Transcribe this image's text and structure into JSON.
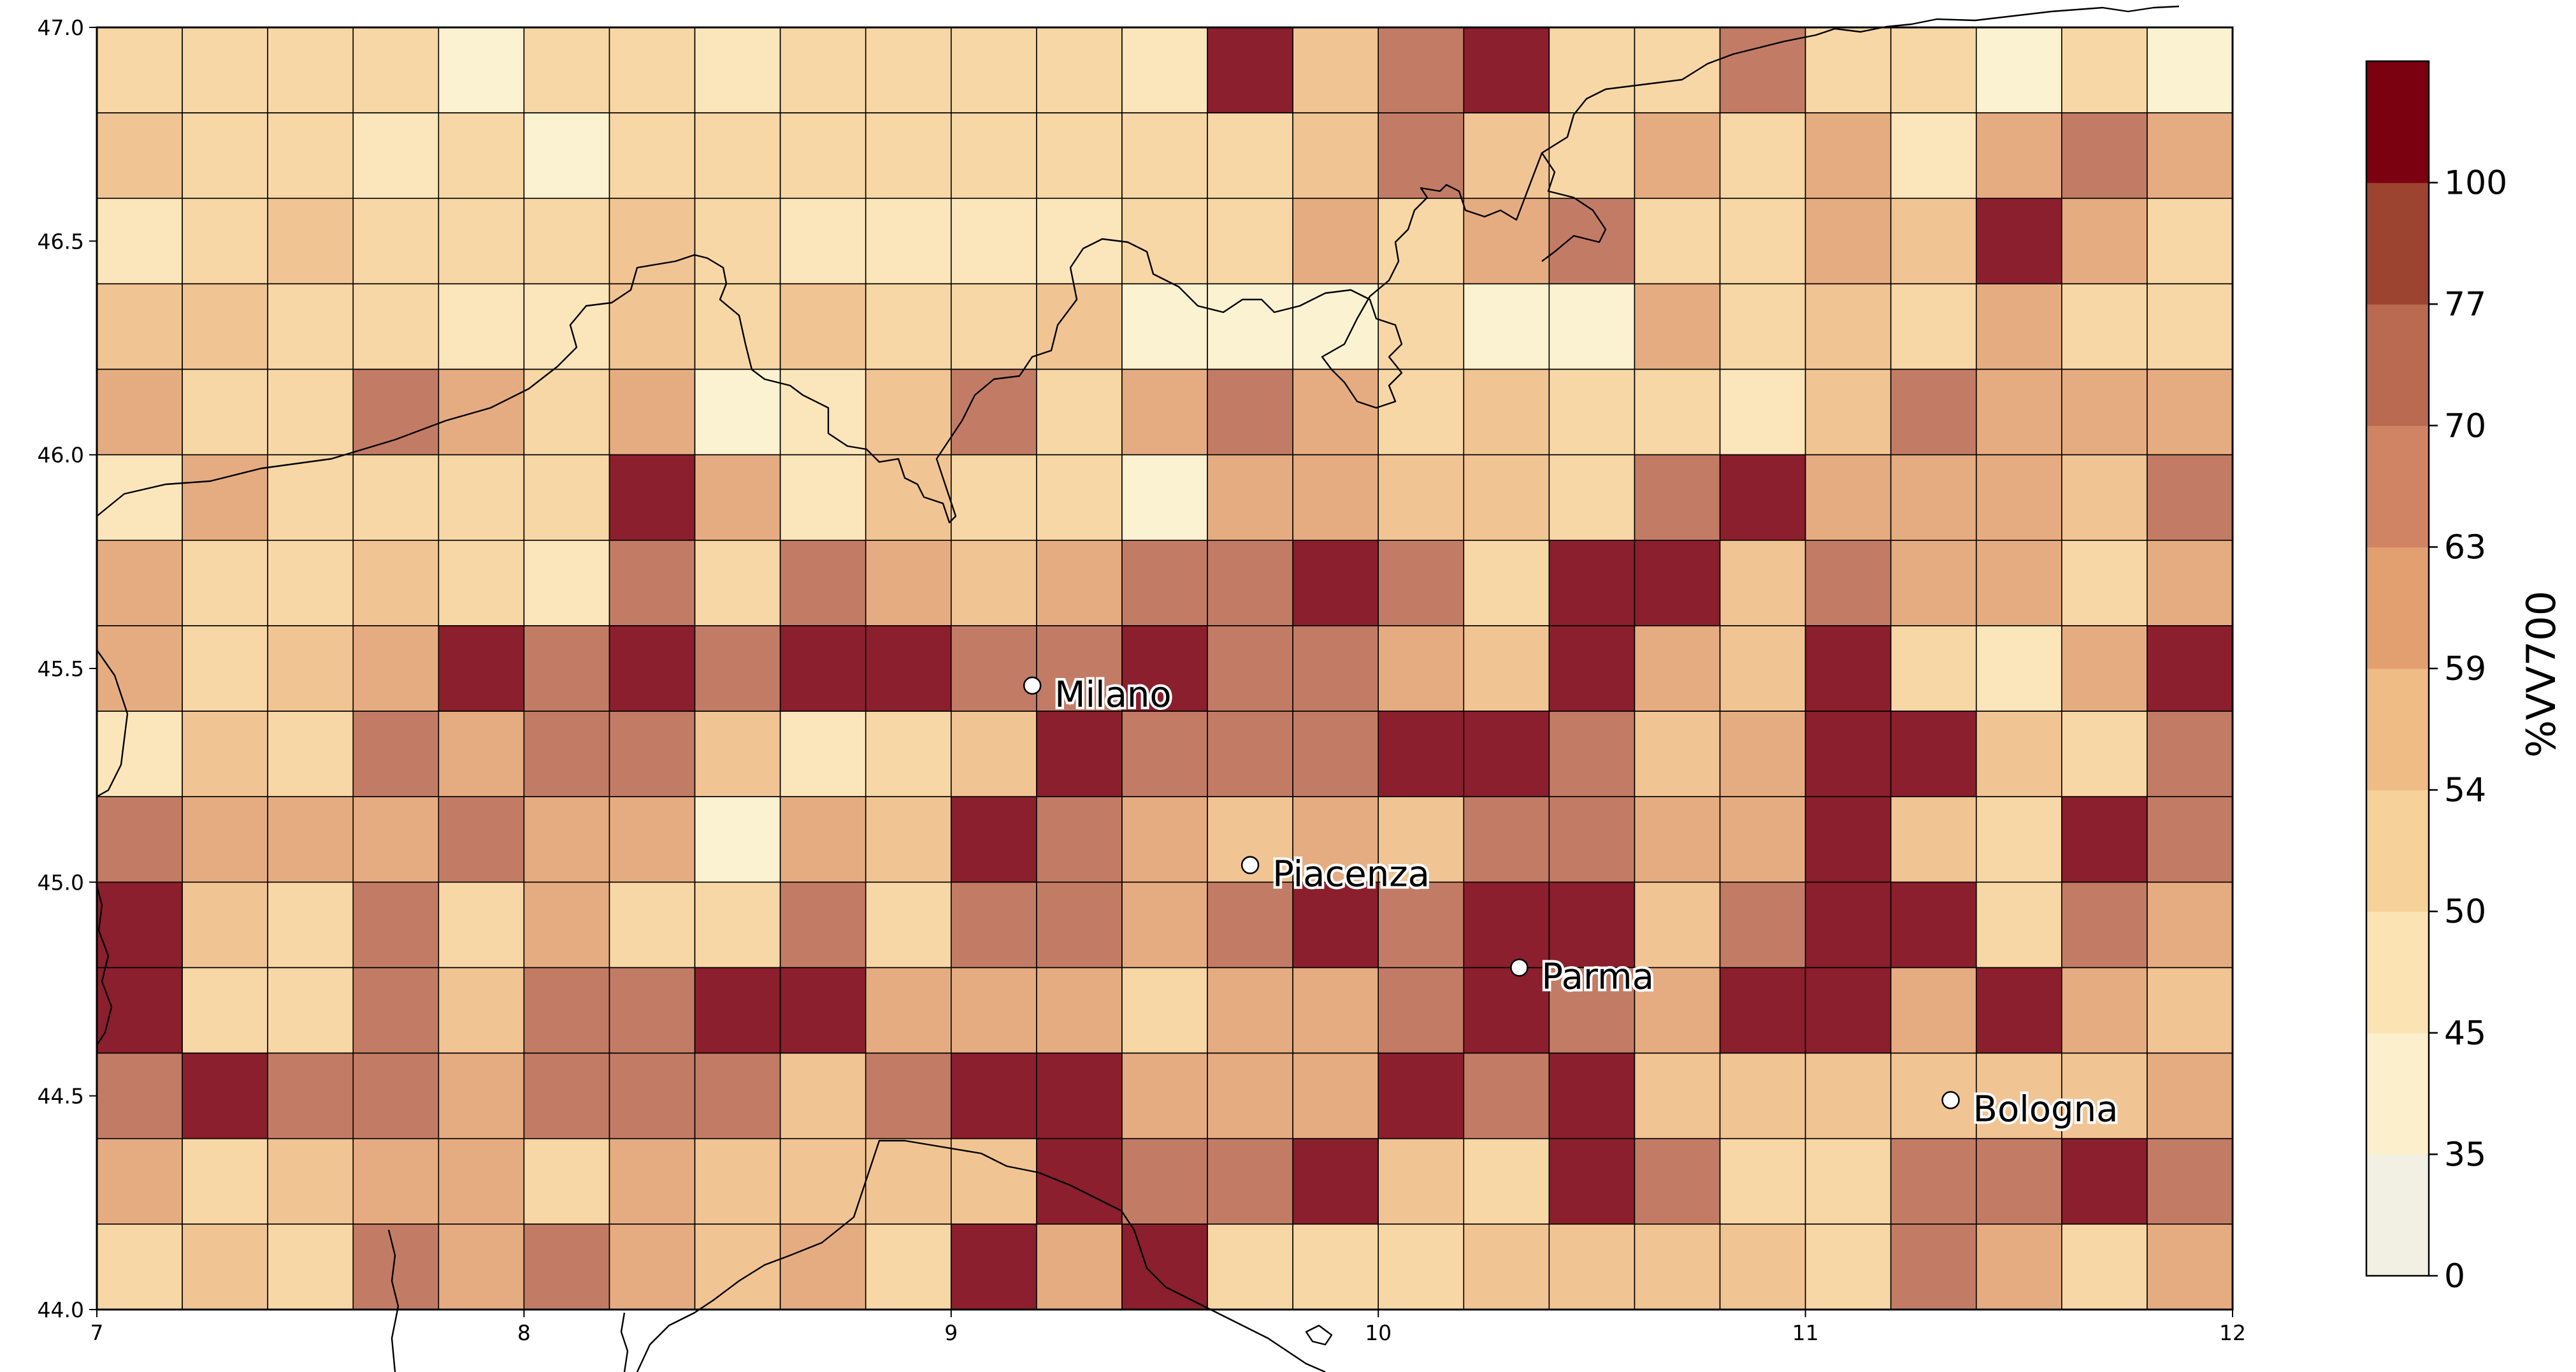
{
  "chart_data": {
    "type": "heatmap",
    "title": "",
    "xlim": [
      7,
      12
    ],
    "ylim": [
      44,
      47
    ],
    "x_ticks": [
      "7",
      "8",
      "9",
      "10",
      "11",
      "12"
    ],
    "y_ticks": [
      "44.0",
      "44.5",
      "45.0",
      "45.5",
      "46.0",
      "46.5",
      "47.0"
    ],
    "cell_size_deg": 0.2,
    "levels": [
      0,
      35,
      45,
      50,
      54,
      59,
      63,
      70,
      77,
      100
    ],
    "level_colors": [
      "#f2f0e3",
      "#fbf0cb",
      "#fbe3b3",
      "#f6d199",
      "#efbc85",
      "#e2a070",
      "#d08463",
      "#b96a51",
      "#9c4430",
      "#7b0010"
    ],
    "colorbar_ticks": [
      "0",
      "35",
      "45",
      "50",
      "54",
      "59",
      "63",
      "70",
      "77",
      "100"
    ],
    "colorbar_label": "%VV700",
    "grid_rows_top_to_bottom": [
      [
        3,
        3,
        3,
        3,
        1,
        3,
        3,
        2,
        3,
        3,
        3,
        3,
        2,
        9,
        4,
        7,
        9,
        3,
        3,
        7,
        3,
        3,
        1,
        3,
        1
      ],
      [
        4,
        3,
        3,
        2,
        3,
        1,
        3,
        3,
        3,
        3,
        3,
        3,
        3,
        3,
        4,
        7,
        4,
        3,
        5,
        3,
        5,
        2,
        5,
        7,
        5
      ],
      [
        2,
        3,
        4,
        3,
        3,
        3,
        4,
        3,
        2,
        2,
        2,
        2,
        3,
        3,
        5,
        3,
        5,
        7,
        3,
        3,
        5,
        4,
        9,
        5,
        3
      ],
      [
        4,
        4,
        3,
        3,
        2,
        2,
        4,
        3,
        4,
        3,
        3,
        4,
        1,
        1,
        1,
        3,
        1,
        1,
        5,
        3,
        4,
        3,
        5,
        3,
        3
      ],
      [
        5,
        3,
        3,
        7,
        5,
        3,
        5,
        1,
        2,
        4,
        7,
        3,
        5,
        7,
        5,
        3,
        4,
        3,
        3,
        2,
        4,
        7,
        5,
        5,
        5
      ],
      [
        2,
        5,
        3,
        3,
        3,
        3,
        9,
        5,
        2,
        4,
        3,
        3,
        1,
        5,
        5,
        4,
        4,
        3,
        7,
        9,
        5,
        5,
        5,
        4,
        7
      ],
      [
        5,
        3,
        3,
        4,
        3,
        2,
        7,
        3,
        7,
        5,
        4,
        5,
        7,
        7,
        9,
        7,
        3,
        9,
        9,
        4,
        7,
        5,
        5,
        3,
        5
      ],
      [
        5,
        3,
        4,
        5,
        9,
        7,
        9,
        7,
        9,
        9,
        7,
        7,
        9,
        7,
        7,
        5,
        4,
        9,
        5,
        4,
        9,
        3,
        2,
        5,
        9
      ],
      [
        2,
        4,
        3,
        7,
        5,
        7,
        7,
        4,
        2,
        3,
        4,
        9,
        7,
        7,
        7,
        9,
        9,
        7,
        4,
        5,
        9,
        9,
        4,
        3,
        7
      ],
      [
        7,
        5,
        5,
        5,
        7,
        5,
        5,
        1,
        5,
        4,
        9,
        7,
        5,
        4,
        5,
        4,
        7,
        7,
        5,
        5,
        9,
        4,
        3,
        9,
        7
      ],
      [
        9,
        4,
        3,
        7,
        3,
        5,
        3,
        3,
        7,
        3,
        7,
        7,
        5,
        7,
        9,
        7,
        9,
        9,
        4,
        7,
        9,
        9,
        3,
        7,
        5
      ],
      [
        9,
        3,
        3,
        7,
        4,
        7,
        7,
        9,
        9,
        5,
        5,
        5,
        3,
        5,
        5,
        7,
        9,
        7,
        5,
        9,
        9,
        5,
        9,
        5,
        4
      ],
      [
        7,
        9,
        7,
        7,
        5,
        7,
        7,
        7,
        4,
        7,
        9,
        9,
        5,
        5,
        5,
        9,
        7,
        9,
        4,
        4,
        4,
        4,
        4,
        4,
        5
      ],
      [
        5,
        3,
        4,
        5,
        5,
        3,
        5,
        4,
        4,
        4,
        4,
        9,
        7,
        7,
        9,
        4,
        3,
        9,
        7,
        3,
        3,
        7,
        7,
        9,
        7
      ],
      [
        3,
        4,
        3,
        7,
        5,
        7,
        5,
        4,
        5,
        3,
        9,
        5,
        9,
        3,
        3,
        3,
        4,
        4,
        4,
        4,
        3,
        7,
        5,
        3,
        5
      ]
    ],
    "cities": [
      {
        "name": "Milano",
        "lon": 9.19,
        "lat": 45.46
      },
      {
        "name": "Piacenza",
        "lon": 9.7,
        "lat": 45.04
      },
      {
        "name": "Parma",
        "lon": 10.33,
        "lat": 44.8
      },
      {
        "name": "Bologna",
        "lon": 11.34,
        "lat": 44.49
      }
    ]
  }
}
